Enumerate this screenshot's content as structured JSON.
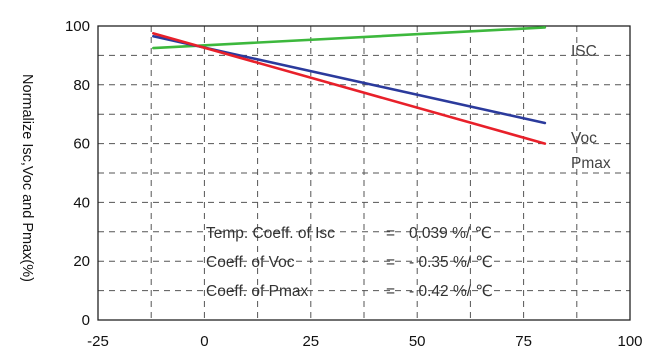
{
  "chart_data": {
    "type": "line",
    "xlabel": "",
    "ylabel": "Normalize Isc,Voc and Pmax(%)",
    "xlim": [
      -25,
      100
    ],
    "ylim": [
      0,
      100
    ],
    "x_ticks": [
      "-25",
      "0",
      "25",
      "50",
      "75",
      "100"
    ],
    "y_ticks": [
      "0",
      "20",
      "40",
      "60",
      "80",
      "100"
    ],
    "grid": true,
    "series": [
      {
        "name": "ISC",
        "color": "#3db83d",
        "x": [
          -12,
          80
        ],
        "y": [
          92.5,
          99.5
        ]
      },
      {
        "name": "Voc",
        "color": "#2b3a9c",
        "x": [
          -12,
          80
        ],
        "y": [
          96.5,
          67
        ]
      },
      {
        "name": "Pmax",
        "color": "#e8202a",
        "x": [
          -12,
          80
        ],
        "y": [
          97.5,
          60
        ]
      }
    ],
    "annotations": [
      {
        "label": "Temp. Coeff. of Isc",
        "eq": "=",
        "value": "0.039 %/ ℃"
      },
      {
        "label": "Coeff. of Voc",
        "eq": "=",
        "value": "- 0.35 %/ ℃"
      },
      {
        "label": "Coeff. of Pmax",
        "eq": "=",
        "value": "- 0.42 %/ ℃"
      }
    ]
  }
}
